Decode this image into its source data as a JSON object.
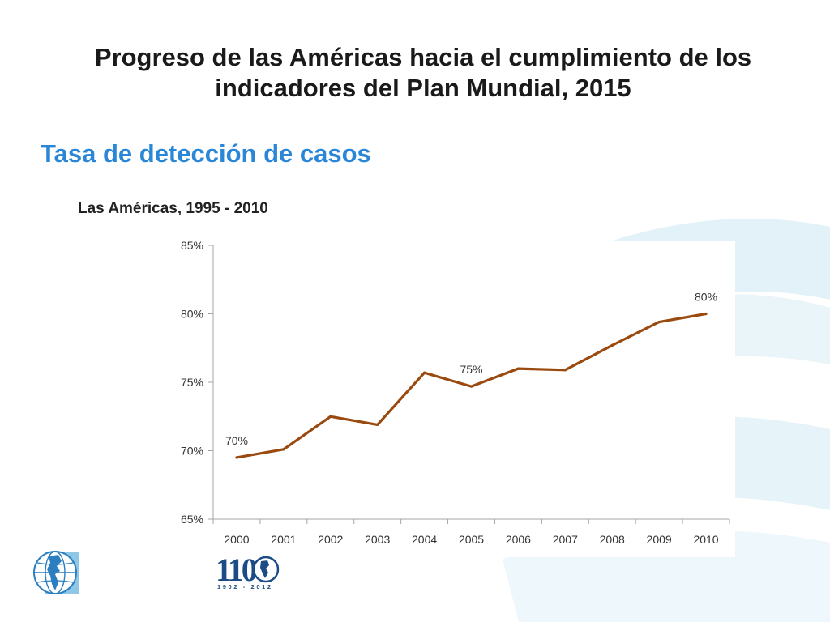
{
  "slide": {
    "title": "Progreso de las Américas hacia el cumplimiento de los indicadores del Plan Mundial, 2015",
    "subtitle": "Tasa de detección de casos",
    "caption": "Las Américas, 1995 - 2010"
  },
  "chart_data": {
    "type": "line",
    "title": "",
    "xlabel": "",
    "ylabel": "",
    "categories": [
      "2000",
      "2001",
      "2002",
      "2003",
      "2004",
      "2005",
      "2006",
      "2007",
      "2008",
      "2009",
      "2010"
    ],
    "series": [
      {
        "values": [
          69.5,
          70.1,
          72.5,
          71.9,
          75.7,
          74.7,
          76.0,
          75.9,
          77.7,
          79.4,
          80.0
        ]
      }
    ],
    "data_labels": [
      {
        "index": 0,
        "text": "70%"
      },
      {
        "index": 5,
        "text": "75%"
      },
      {
        "index": 10,
        "text": "80%"
      }
    ],
    "ylim": [
      65,
      85
    ],
    "y_ticks": [
      65,
      70,
      75,
      80,
      85
    ],
    "y_tick_format": "%",
    "grid": false,
    "legend": "none",
    "line_color": "#9a4a0f",
    "axis_color": "#a6a6a6"
  },
  "logos": {
    "anniversary_text": "110",
    "anniversary_years": "1902 - 2012",
    "globe": "globe-americas-icon"
  },
  "colors": {
    "subtitle": "#2a86d6",
    "title": "#1a1a1a",
    "swoosh": "#d8ecf6"
  }
}
